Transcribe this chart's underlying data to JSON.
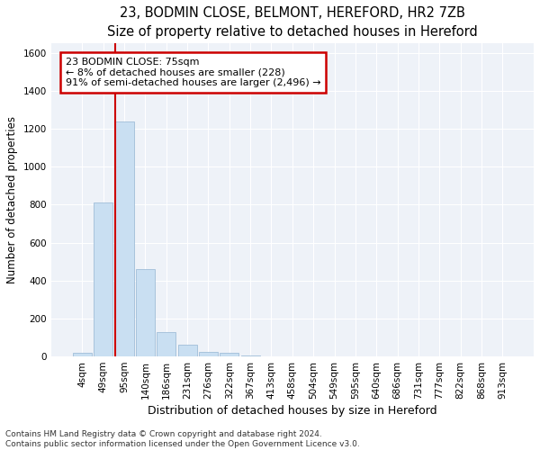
{
  "title1": "23, BODMIN CLOSE, BELMONT, HEREFORD, HR2 7ZB",
  "title2": "Size of property relative to detached houses in Hereford",
  "xlabel": "Distribution of detached houses by size in Hereford",
  "ylabel": "Number of detached properties",
  "bar_color": "#c9dff2",
  "bar_edgecolor": "#a0bdd8",
  "categories": [
    "4sqm",
    "49sqm",
    "95sqm",
    "140sqm",
    "186sqm",
    "231sqm",
    "276sqm",
    "322sqm",
    "367sqm",
    "413sqm",
    "458sqm",
    "504sqm",
    "549sqm",
    "595sqm",
    "640sqm",
    "686sqm",
    "731sqm",
    "777sqm",
    "822sqm",
    "868sqm",
    "913sqm"
  ],
  "values": [
    20,
    810,
    1240,
    460,
    130,
    62,
    25,
    20,
    3,
    0,
    0,
    0,
    0,
    0,
    0,
    0,
    0,
    0,
    0,
    0,
    0
  ],
  "ylim": [
    0,
    1650
  ],
  "yticks": [
    0,
    200,
    400,
    600,
    800,
    1000,
    1200,
    1400,
    1600
  ],
  "vline_x": 1.58,
  "vline_color": "#cc0000",
  "annotation_line1": "23 BODMIN CLOSE: 75sqm",
  "annotation_line2": "← 8% of detached houses are smaller (228)",
  "annotation_line3": "91% of semi-detached houses are larger (2,496) →",
  "annotation_box_color": "#cc0000",
  "footer1": "Contains HM Land Registry data © Crown copyright and database right 2024.",
  "footer2": "Contains public sector information licensed under the Open Government Licence v3.0.",
  "background_color": "#eef2f8",
  "grid_color": "#ffffff",
  "title1_fontsize": 10.5,
  "title2_fontsize": 9.5,
  "xlabel_fontsize": 9,
  "ylabel_fontsize": 8.5,
  "tick_fontsize": 7.5,
  "annotation_fontsize": 8,
  "footer_fontsize": 6.5
}
